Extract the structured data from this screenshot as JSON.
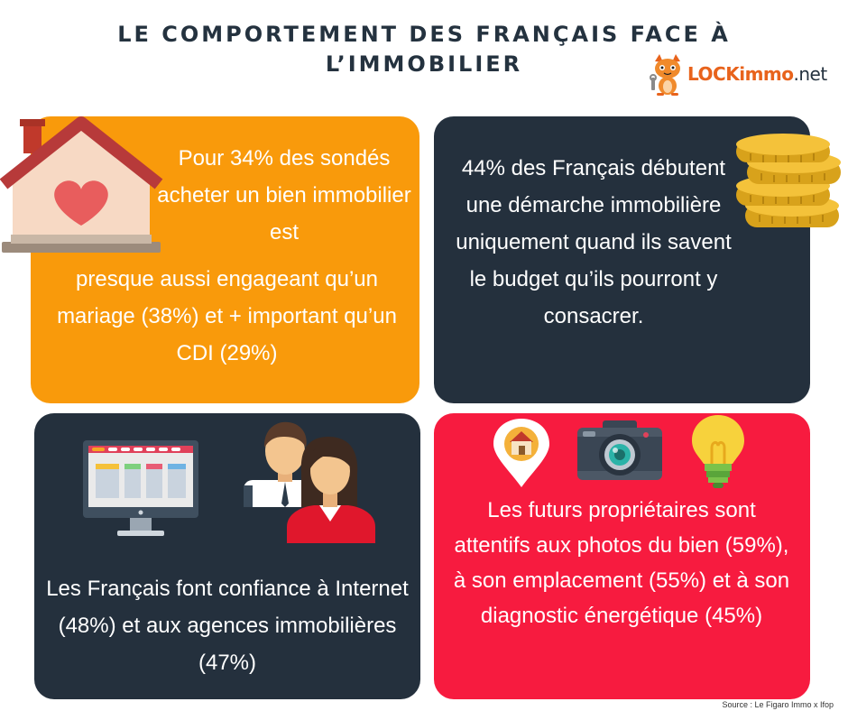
{
  "title": {
    "line1": "LE COMPORTEMENT DES FRANÇAIS FACE À",
    "line2": "L’IMMOBILIER"
  },
  "logo": {
    "brand": "LOCKimmo",
    "tld": ".net"
  },
  "cards": {
    "card1": {
      "text_top": "Pour 34% des sondés acheter un bien immobilier est",
      "text_bottom": "presque aussi engageant qu’un mariage (38%) et + important qu’un CDI (29%)",
      "icon": "house-heart-icon"
    },
    "card2": {
      "text": "44% des Français débutent une démarche immobilière uniquement quand ils savent le budget qu’ils pourront y consacrer.",
      "icon": "coins-stack-icon"
    },
    "card3": {
      "text": "Les Français font confiance à Internet (48%) et aux agences immobilières (47%)",
      "icons": [
        "monitor-icon",
        "people-icon"
      ]
    },
    "card4": {
      "text": "Les futurs propriétaires sont attentifs aux photos du bien (59%), à son emplacement (55%) et à son diagnostic énergétique (45%)",
      "icons": [
        "location-pin-icon",
        "camera-icon",
        "lightbulb-icon"
      ]
    }
  },
  "source": "Source : Le Figaro Immo x Ifop",
  "colors": {
    "orange": "#f99a0b",
    "navy": "#24303d",
    "red": "#f71b3f",
    "title": "#24323f"
  }
}
